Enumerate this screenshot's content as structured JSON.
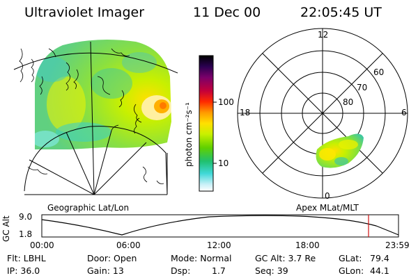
{
  "header": {
    "title": "Ultraviolet Imager",
    "date": "11 Dec 00",
    "time": "22:05:45 UT"
  },
  "colorbar": {
    "unit_label": "photon cm⁻²s⁻¹",
    "ticks": [
      "100",
      "10"
    ],
    "colors": [
      "#000000",
      "#2a0050",
      "#7a006a",
      "#c4003a",
      "#ff2a00",
      "#ff9a00",
      "#ffe000",
      "#c8f000",
      "#60d000",
      "#20c070",
      "#40d8d8",
      "#c8f0f8",
      "#ffffff"
    ]
  },
  "geographic_panel": {
    "label": "Geographic Lat/Lon"
  },
  "polar_panel": {
    "label": "Apex MLat/MLT",
    "mlt_labels": {
      "top": "12",
      "left": "18",
      "right": "6",
      "bottom": "0"
    },
    "lat_labels": [
      "60",
      "70",
      "80"
    ]
  },
  "altitude_plot": {
    "ylabel": "GC Alt",
    "yticks": [
      "9.0",
      "1.8"
    ],
    "xticks": [
      "00:00",
      "06:00",
      "12:00",
      "18:00",
      "23:59"
    ],
    "marker_color": "#d01010"
  },
  "info": {
    "flt": "Flt: LBHL",
    "ip": "IP: 36.0",
    "door": "Door: Open",
    "gain": "Gain: 13",
    "mode": "Mode: Normal",
    "dsp": "Dsp:",
    "dsp_value": "1.7",
    "gc_alt": "GC Alt: 3.7 Re",
    "seq": "Seq: 39",
    "glat": "GLat:",
    "glat_value": "79.4",
    "glon": "GLon:",
    "glon_value": "44.1"
  }
}
